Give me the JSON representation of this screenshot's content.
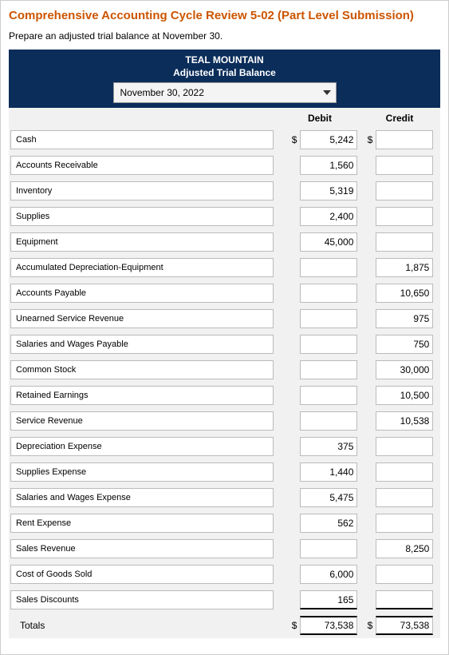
{
  "title": "Comprehensive Accounting Cycle Review 5-02 (Part Level Submission)",
  "instruction": "Prepare an adjusted trial balance at November 30.",
  "header": {
    "company": "TEAL MOUNTAIN",
    "subtitle": "Adjusted Trial Balance",
    "date": "November 30, 2022"
  },
  "columns": {
    "debit": "Debit",
    "credit": "Credit"
  },
  "rows": [
    {
      "account": "Cash",
      "debit": "5,242",
      "credit": "",
      "symDebit": "$",
      "symCredit": "$"
    },
    {
      "account": "Accounts Receivable",
      "debit": "1,560",
      "credit": ""
    },
    {
      "account": "Inventory",
      "debit": "5,319",
      "credit": ""
    },
    {
      "account": "Supplies",
      "debit": "2,400",
      "credit": ""
    },
    {
      "account": "Equipment",
      "debit": "45,000",
      "credit": ""
    },
    {
      "account": "Accumulated Depreciation-Equipment",
      "debit": "",
      "credit": "1,875"
    },
    {
      "account": "Accounts Payable",
      "debit": "",
      "credit": "10,650"
    },
    {
      "account": "Unearned Service Revenue",
      "debit": "",
      "credit": "975"
    },
    {
      "account": "Salaries and Wages Payable",
      "debit": "",
      "credit": "750"
    },
    {
      "account": "Common Stock",
      "debit": "",
      "credit": "30,000"
    },
    {
      "account": "Retained Earnings",
      "debit": "",
      "credit": "10,500"
    },
    {
      "account": "Service Revenue",
      "debit": "",
      "credit": "10,538"
    },
    {
      "account": "Depreciation Expense",
      "debit": "375",
      "credit": ""
    },
    {
      "account": "Supplies Expense",
      "debit": "1,440",
      "credit": ""
    },
    {
      "account": "Salaries and Wages Expense",
      "debit": "5,475",
      "credit": ""
    },
    {
      "account": "Rent Expense",
      "debit": "562",
      "credit": ""
    },
    {
      "account": "Sales Revenue",
      "debit": "",
      "credit": "8,250"
    },
    {
      "account": "Cost of Goods Sold",
      "debit": "6,000",
      "credit": ""
    },
    {
      "account": "Sales Discounts",
      "debit": "165",
      "credit": ""
    }
  ],
  "totals": {
    "label": "Totals",
    "debit": "73,538",
    "credit": "73,538",
    "symDebit": "$",
    "symCredit": "$"
  }
}
